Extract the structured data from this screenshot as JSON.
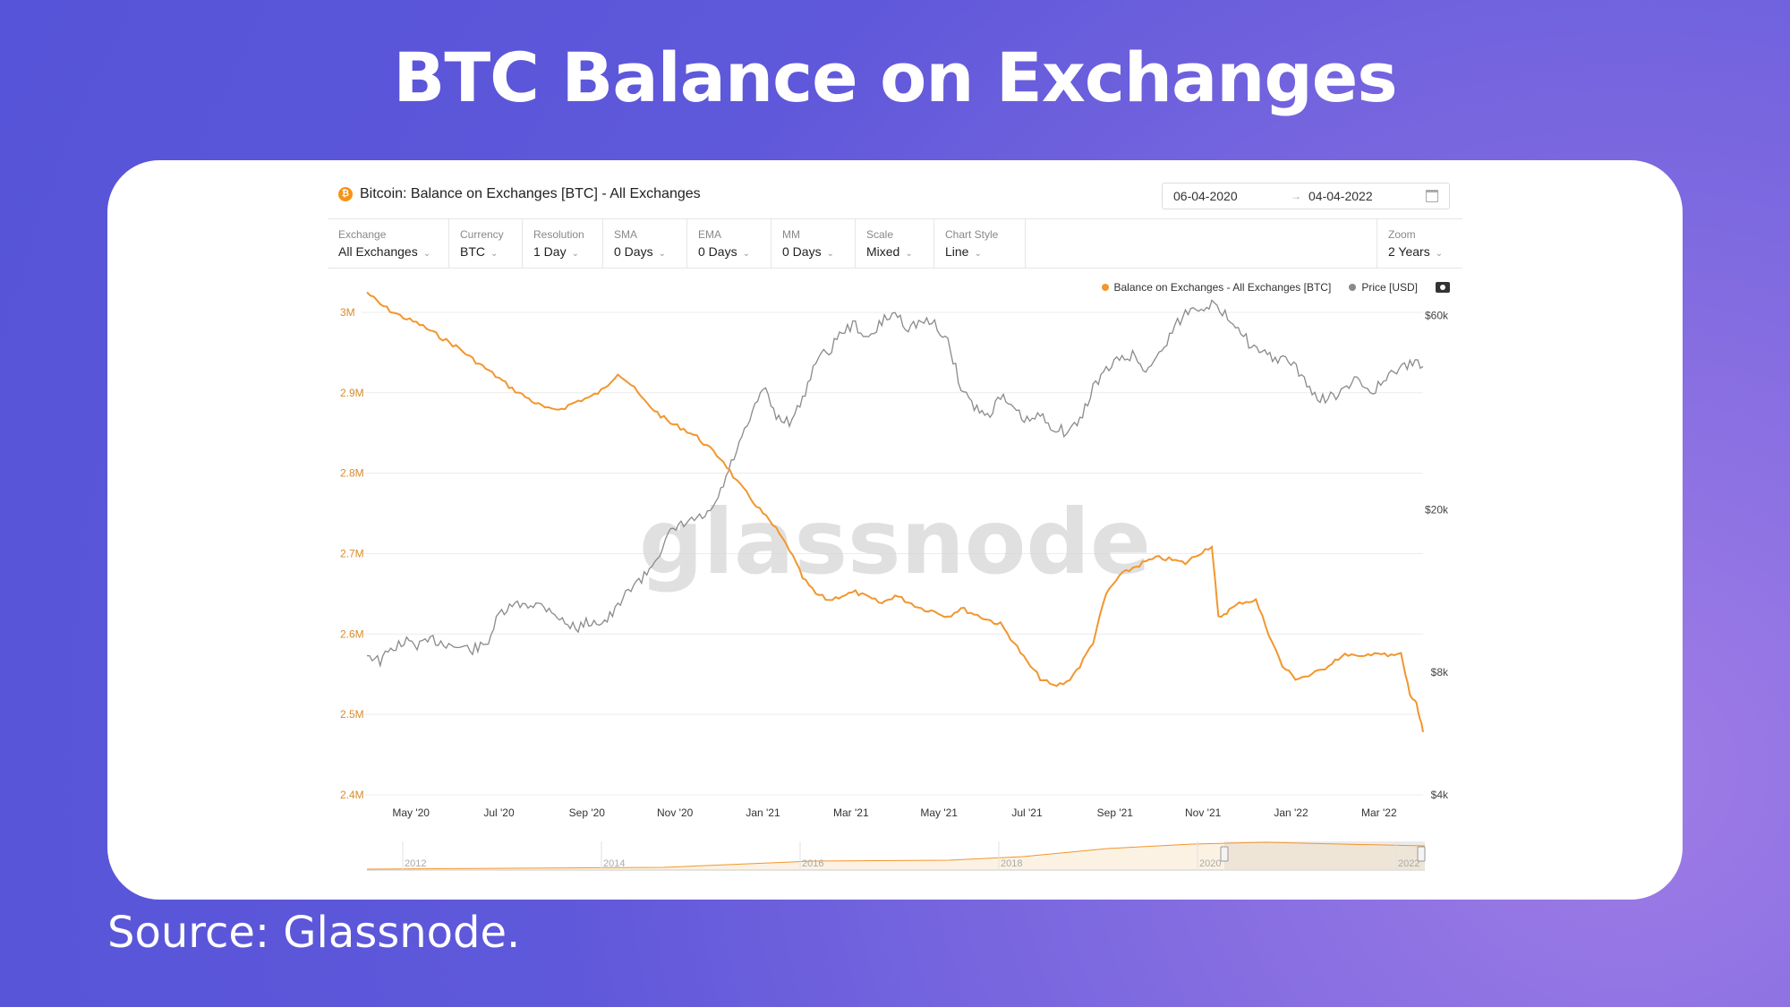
{
  "slide": {
    "title": "BTC Balance on Exchanges",
    "source": "Source: Glassnode."
  },
  "panel": {
    "title": "Bitcoin: Balance on Exchanges [BTC] - All Exchanges",
    "date_from": "06-04-2020",
    "date_to": "04-04-2022",
    "controls": [
      {
        "label": "Exchange",
        "value": "All Exchanges"
      },
      {
        "label": "Currency",
        "value": "BTC"
      },
      {
        "label": "Resolution",
        "value": "1 Day"
      },
      {
        "label": "SMA",
        "value": "0 Days"
      },
      {
        "label": "EMA",
        "value": "0 Days"
      },
      {
        "label": "MM",
        "value": "0 Days"
      },
      {
        "label": "Scale",
        "value": "Mixed"
      },
      {
        "label": "Chart Style",
        "value": "Line"
      }
    ],
    "zoom": {
      "label": "Zoom",
      "value": "2 Years"
    },
    "watermark": "glassnode"
  },
  "chart_data": {
    "type": "line",
    "legend_position": "top-right",
    "colors": {
      "balance": "#f2962e",
      "price": "#8a8a8a"
    },
    "x_ticks": [
      "May '20",
      "Jul '20",
      "Sep '20",
      "Nov '20",
      "Jan '21",
      "Mar '21",
      "May '21",
      "Jul '21",
      "Sep '21",
      "Nov '21",
      "Jan '22",
      "Mar '22"
    ],
    "y_left": {
      "ticks": [
        "3M",
        "2.9M",
        "2.8M",
        "2.7M",
        "2.6M",
        "2.5M",
        "2.4M"
      ],
      "range": [
        2400000,
        3030000
      ],
      "scale": "linear"
    },
    "y_right": {
      "ticks": [
        "$60k",
        "$20k",
        "$8k",
        "$4k"
      ],
      "range": [
        4000,
        70000
      ],
      "scale": "log"
    },
    "x_range_months": [
      0,
      24
    ],
    "series": [
      {
        "name": "Balance on Exchanges - All Exchanges [BTC]",
        "axis": "left",
        "points": [
          [
            0,
            3025000
          ],
          [
            0.3,
            3010000
          ],
          [
            0.6,
            3000000
          ],
          [
            0.9,
            2992000
          ],
          [
            1.2,
            2985000
          ],
          [
            1.5,
            2975000
          ],
          [
            1.8,
            2965000
          ],
          [
            2.1,
            2955000
          ],
          [
            2.4,
            2942000
          ],
          [
            2.7,
            2930000
          ],
          [
            3.0,
            2918000
          ],
          [
            3.3,
            2905000
          ],
          [
            3.6,
            2895000
          ],
          [
            3.9,
            2885000
          ],
          [
            4.2,
            2878000
          ],
          [
            4.5,
            2882000
          ],
          [
            4.8,
            2890000
          ],
          [
            5.1,
            2895000
          ],
          [
            5.4,
            2905000
          ],
          [
            5.7,
            2925000
          ],
          [
            6.0,
            2910000
          ],
          [
            6.3,
            2890000
          ],
          [
            6.6,
            2875000
          ],
          [
            6.9,
            2862000
          ],
          [
            7.2,
            2855000
          ],
          [
            7.5,
            2845000
          ],
          [
            7.8,
            2830000
          ],
          [
            8.1,
            2815000
          ],
          [
            8.4,
            2790000
          ],
          [
            8.7,
            2770000
          ],
          [
            9.0,
            2750000
          ],
          [
            9.3,
            2730000
          ],
          [
            9.6,
            2705000
          ],
          [
            9.9,
            2670000
          ],
          [
            10.2,
            2650000
          ],
          [
            10.5,
            2642000
          ],
          [
            10.8,
            2648000
          ],
          [
            11.1,
            2652000
          ],
          [
            11.4,
            2645000
          ],
          [
            11.7,
            2638000
          ],
          [
            12.0,
            2648000
          ],
          [
            12.3,
            2640000
          ],
          [
            12.6,
            2632000
          ],
          [
            12.9,
            2628000
          ],
          [
            13.2,
            2622000
          ],
          [
            13.5,
            2632000
          ],
          [
            13.8,
            2625000
          ],
          [
            14.1,
            2618000
          ],
          [
            14.4,
            2612000
          ],
          [
            14.7,
            2590000
          ],
          [
            15.0,
            2565000
          ],
          [
            15.3,
            2545000
          ],
          [
            15.6,
            2535000
          ],
          [
            15.9,
            2540000
          ],
          [
            16.2,
            2560000
          ],
          [
            16.5,
            2590000
          ],
          [
            16.8,
            2650000
          ],
          [
            17.1,
            2672000
          ],
          [
            17.4,
            2682000
          ],
          [
            17.7,
            2690000
          ],
          [
            18.0,
            2695000
          ],
          [
            18.3,
            2692000
          ],
          [
            18.6,
            2688000
          ],
          [
            18.9,
            2700000
          ],
          [
            19.2,
            2710000
          ],
          [
            19.35,
            2620000
          ],
          [
            19.6,
            2630000
          ],
          [
            19.9,
            2640000
          ],
          [
            20.2,
            2642000
          ],
          [
            20.5,
            2600000
          ],
          [
            20.8,
            2560000
          ],
          [
            21.1,
            2545000
          ],
          [
            21.4,
            2548000
          ],
          [
            21.7,
            2555000
          ],
          [
            22.0,
            2568000
          ],
          [
            22.3,
            2575000
          ],
          [
            22.6,
            2570000
          ],
          [
            22.9,
            2578000
          ],
          [
            23.2,
            2572000
          ],
          [
            23.5,
            2575000
          ],
          [
            23.7,
            2525000
          ],
          [
            23.85,
            2512000
          ],
          [
            24.0,
            2478000
          ]
        ]
      },
      {
        "name": "Price [USD]",
        "axis": "right",
        "points": [
          [
            0,
            8900
          ],
          [
            0.3,
            8500
          ],
          [
            0.6,
            9200
          ],
          [
            0.9,
            9500
          ],
          [
            1.2,
            9300
          ],
          [
            1.5,
            9600
          ],
          [
            1.8,
            9400
          ],
          [
            2.1,
            9200
          ],
          [
            2.4,
            9100
          ],
          [
            2.7,
            9300
          ],
          [
            3.0,
            11000
          ],
          [
            3.3,
            11600
          ],
          [
            3.6,
            11800
          ],
          [
            3.9,
            11700
          ],
          [
            4.2,
            11400
          ],
          [
            4.5,
            10500
          ],
          [
            4.8,
            10300
          ],
          [
            5.1,
            10700
          ],
          [
            5.4,
            10600
          ],
          [
            5.7,
            11500
          ],
          [
            6.0,
            13000
          ],
          [
            6.3,
            13700
          ],
          [
            6.6,
            15500
          ],
          [
            6.9,
            17500
          ],
          [
            7.2,
            18500
          ],
          [
            7.5,
            19000
          ],
          [
            7.8,
            19500
          ],
          [
            8.1,
            23000
          ],
          [
            8.4,
            28000
          ],
          [
            8.7,
            33000
          ],
          [
            9.0,
            40000
          ],
          [
            9.3,
            34000
          ],
          [
            9.6,
            33000
          ],
          [
            9.9,
            37000
          ],
          [
            10.2,
            47000
          ],
          [
            10.5,
            49000
          ],
          [
            10.8,
            55000
          ],
          [
            11.1,
            57000
          ],
          [
            11.4,
            52000
          ],
          [
            11.7,
            58000
          ],
          [
            12.0,
            61000
          ],
          [
            12.3,
            56000
          ],
          [
            12.6,
            58000
          ],
          [
            12.9,
            57000
          ],
          [
            13.2,
            52000
          ],
          [
            13.5,
            40000
          ],
          [
            13.8,
            36000
          ],
          [
            14.1,
            34000
          ],
          [
            14.4,
            38000
          ],
          [
            14.7,
            35000
          ],
          [
            15.0,
            33000
          ],
          [
            15.3,
            34000
          ],
          [
            15.6,
            32000
          ],
          [
            15.9,
            31000
          ],
          [
            16.2,
            33000
          ],
          [
            16.5,
            40000
          ],
          [
            16.8,
            44000
          ],
          [
            17.1,
            47000
          ],
          [
            17.4,
            48000
          ],
          [
            17.7,
            44000
          ],
          [
            18.0,
            48000
          ],
          [
            18.3,
            55000
          ],
          [
            18.6,
            61000
          ],
          [
            18.9,
            63000
          ],
          [
            19.2,
            64000
          ],
          [
            19.5,
            60000
          ],
          [
            19.8,
            57000
          ],
          [
            20.1,
            50000
          ],
          [
            20.4,
            48000
          ],
          [
            20.7,
            47000
          ],
          [
            21.0,
            46000
          ],
          [
            21.3,
            42000
          ],
          [
            21.6,
            37000
          ],
          [
            21.9,
            38000
          ],
          [
            22.2,
            39000
          ],
          [
            22.5,
            42000
          ],
          [
            22.8,
            39000
          ],
          [
            23.1,
            41000
          ],
          [
            23.4,
            44000
          ],
          [
            23.7,
            46000
          ],
          [
            24.0,
            45000
          ]
        ]
      }
    ],
    "navigator": {
      "year_labels": [
        "2012",
        "2014",
        "2016",
        "2018",
        "2020",
        "2022"
      ]
    }
  }
}
